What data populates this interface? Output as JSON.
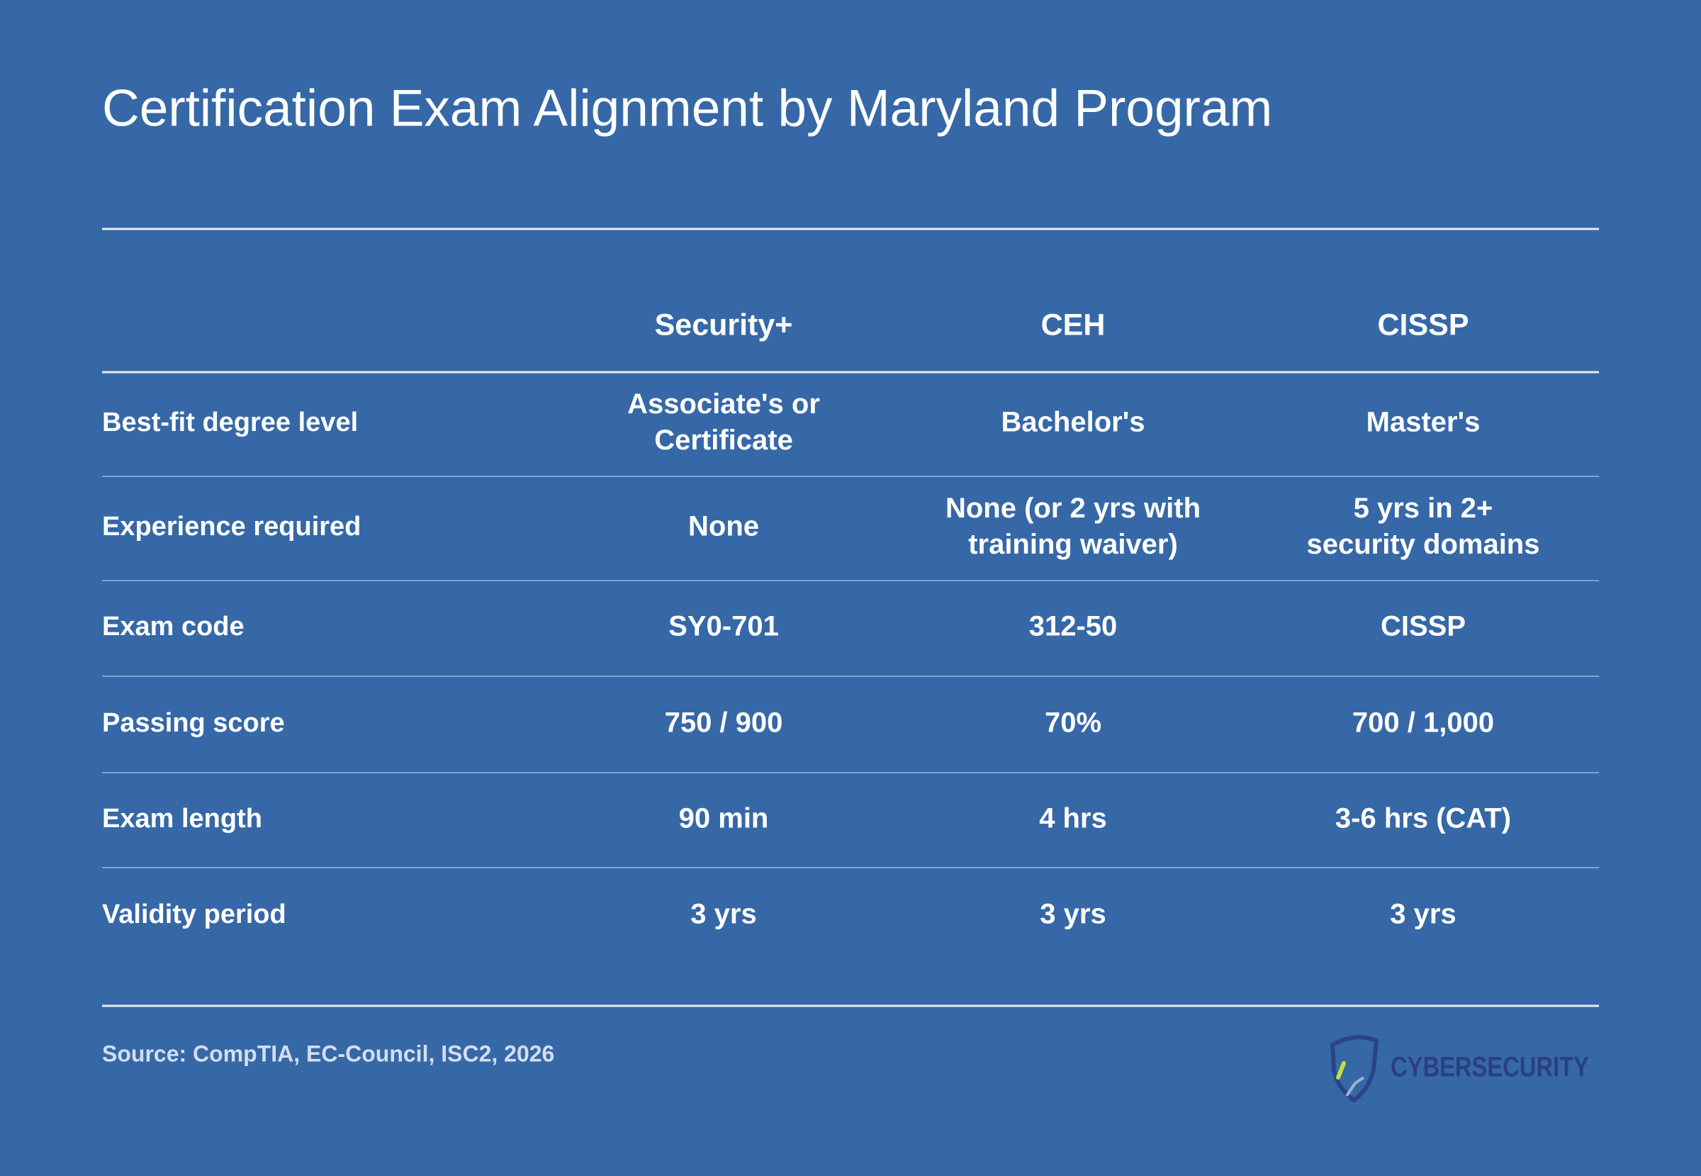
{
  "header": {
    "title": "Certification Exam Alignment by Maryland Program"
  },
  "table": {
    "columns": [
      "Security+",
      "CEH",
      "CISSP"
    ],
    "rows": [
      {
        "label": "Best-fit degree level",
        "cells": [
          [
            "Associate's or",
            "Certificate"
          ],
          [
            "Bachelor's"
          ],
          [
            "Master's"
          ]
        ]
      },
      {
        "label": "Experience required",
        "cells": [
          [
            "None"
          ],
          [
            "None (or 2 yrs with",
            "training waiver)"
          ],
          [
            "5 yrs in 2+",
            "security domains"
          ]
        ]
      },
      {
        "label": "Exam code",
        "cells": [
          [
            "SY0-701"
          ],
          [
            "312-50"
          ],
          [
            "CISSP"
          ]
        ]
      },
      {
        "label": "Passing score",
        "cells": [
          [
            "750 / 900"
          ],
          [
            "70%"
          ],
          [
            "700 / 1,000"
          ]
        ]
      },
      {
        "label": "Exam length",
        "cells": [
          [
            "90 min"
          ],
          [
            "4 hrs"
          ],
          [
            "3-6 hrs (CAT)"
          ]
        ]
      },
      {
        "label": "Validity period",
        "cells": [
          [
            "3 yrs"
          ],
          [
            "3 yrs"
          ],
          [
            "3 yrs"
          ]
        ]
      }
    ]
  },
  "footer": {
    "source": "Source: CompTIA, EC-Council, ISC2, 2026",
    "logo": "CYBERSECURITY"
  }
}
